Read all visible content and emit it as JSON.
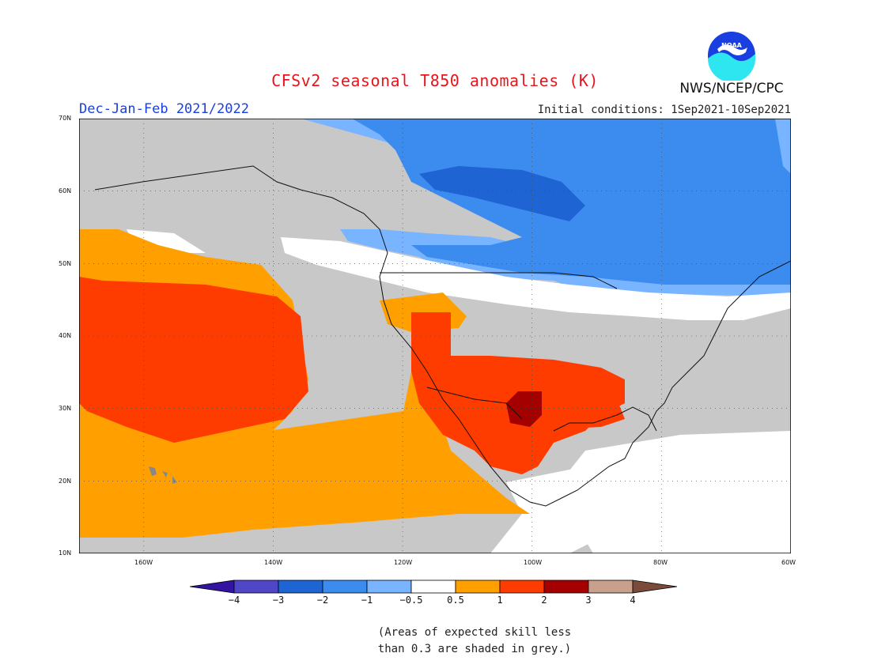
{
  "header": {
    "title": "CFSv2 seasonal T850 anomalies (K)",
    "season": "Dec-Jan-Feb 2021/2022",
    "initial_conditions": "Initial conditions: 1Sep2021-10Sep2021",
    "agency": "NWS/NCEP/CPC",
    "logo_text": "NOAA"
  },
  "map": {
    "projection": "lat-lon",
    "lon_range": [
      -170,
      -60
    ],
    "lat_range": [
      10,
      70
    ],
    "lat_labels": [
      "70N",
      "60N",
      "50N",
      "40N",
      "30N",
      "20N",
      "10N"
    ],
    "lon_labels": [
      "160W",
      "140W",
      "120W",
      "100W",
      "80W",
      "60W"
    ],
    "colors": {
      "grey_low_skill": "#c8c8c8",
      "white_neutral": "#ffffff",
      "orange_0_5_to_1": "#ffa000",
      "red_1_to_2": "#ff3c00",
      "darkred_2_to_3": "#a50000",
      "blue_minus1_to_minus0_5": "#78b4ff",
      "blue_minus2_to_minus1": "#3c8cf0",
      "blue_minus3_to_minus2": "#1e64d2"
    }
  },
  "colorbar": {
    "bins": [
      "#3214a0",
      "#5046c8",
      "#1e64d2",
      "#3c8cf0",
      "#78b4ff",
      "#ffffff",
      "#ffa000",
      "#ff3c00",
      "#a50000",
      "#c8a08c",
      "#7a4a3a"
    ],
    "labels": [
      "−4",
      "−3",
      "−2",
      "−1",
      "−0.5",
      "0.5",
      "1",
      "2",
      "3",
      "4"
    ]
  },
  "note": {
    "line1": "(Areas of expected skill less",
    "line2": "than 0.3 are shaded in grey.)"
  }
}
